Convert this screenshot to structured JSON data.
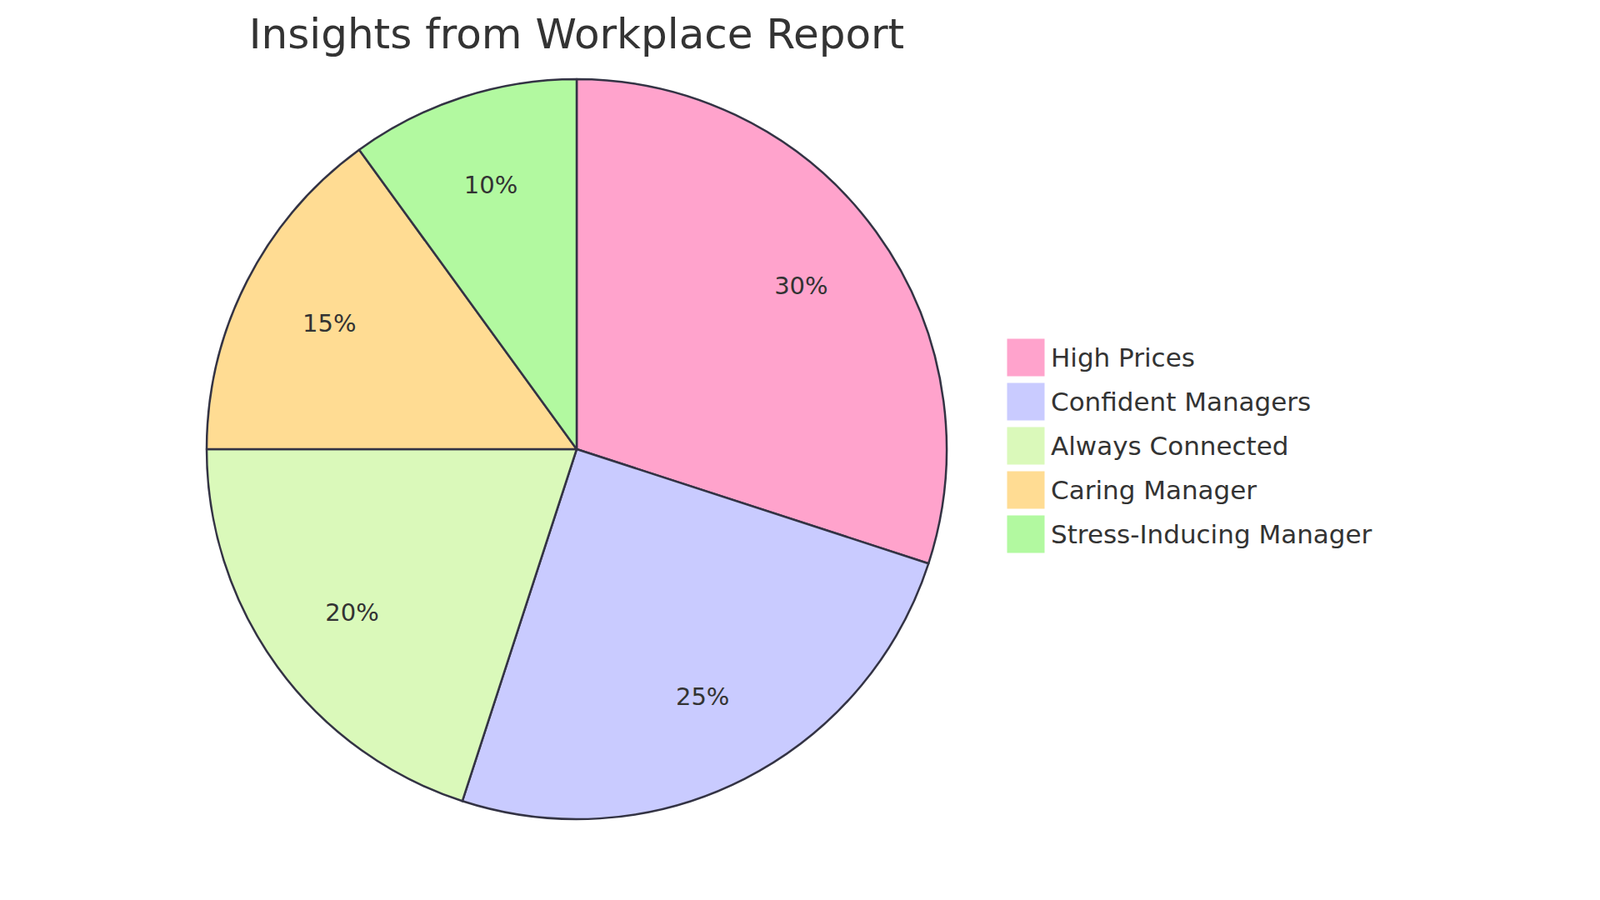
{
  "chart_data": {
    "type": "pie",
    "title": "Insights from Workplace Report",
    "categories": [
      "High Prices",
      "Confident Managers",
      "Always Connected",
      "Caring Manager",
      "Stress-Inducing Manager"
    ],
    "values": [
      30,
      25,
      20,
      15,
      10
    ],
    "value_labels": [
      "30%",
      "25%",
      "20%",
      "15%",
      "10%"
    ],
    "colors": [
      "#FFA3CC",
      "#C9CBFF",
      "#DAF9BA",
      "#FFDC93",
      "#B2F9A0"
    ],
    "data_labels": true,
    "legend": "right"
  }
}
